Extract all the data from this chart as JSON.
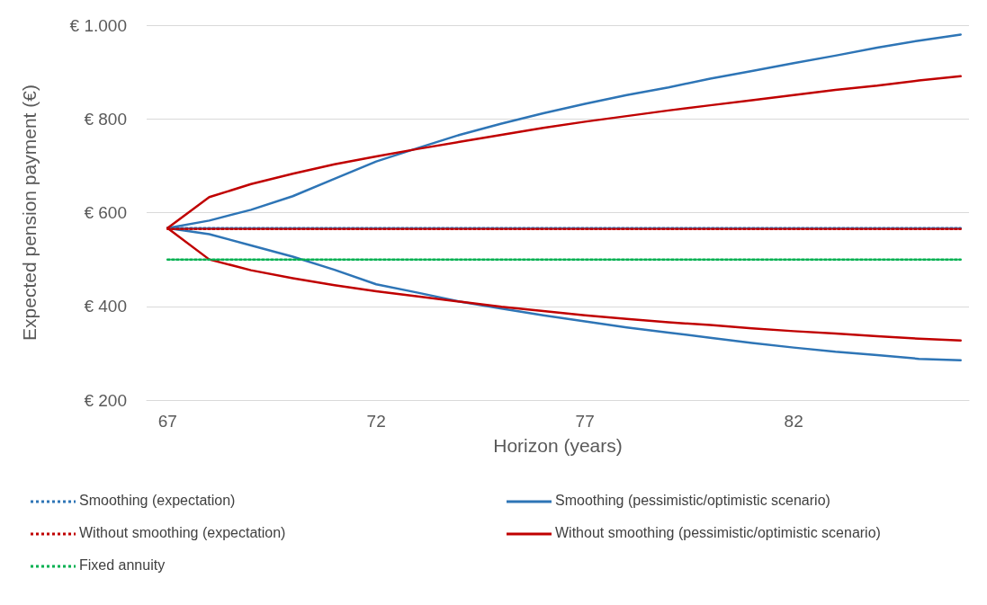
{
  "chart_data": {
    "type": "line",
    "xlabel": "Horizon (years)",
    "ylabel": "Expected pension payment (€)",
    "x": [
      67,
      68,
      69,
      70,
      71,
      72,
      73,
      74,
      75,
      76,
      77,
      78,
      79,
      80,
      81,
      82,
      83,
      84,
      85,
      86
    ],
    "xlim": [
      66.5,
      86.2
    ],
    "xticks": [
      67,
      72,
      77,
      82
    ],
    "ylim": [
      200,
      1000
    ],
    "yticks": [
      {
        "value": 200,
        "label": "€ 200"
      },
      {
        "value": 400,
        "label": "€ 400"
      },
      {
        "value": 600,
        "label": "€ 600"
      },
      {
        "value": 800,
        "label": "€ 800"
      },
      {
        "value": 1000,
        "label": "€ 1.000"
      }
    ],
    "grid": "y",
    "legend": "bottom",
    "marker": "none",
    "series": [
      {
        "name": "Smoothing (expectation)",
        "color": "#2e75b6",
        "line_style": "dotted",
        "values": [
          567,
          567,
          567,
          567,
          567,
          567,
          567,
          567,
          567,
          567,
          567,
          567,
          567,
          567,
          567,
          567,
          567,
          567,
          567,
          567
        ]
      },
      {
        "name": "Smoothing (pessimistic/optimistic scenario)",
        "color": "#2e75b6",
        "line_style": "solid",
        "values": [
          567,
          583,
          606,
          635,
          672,
          709,
          738,
          766,
          790,
          812,
          832,
          851,
          867,
          886,
          902,
          919,
          935,
          952,
          967,
          980
        ]
      },
      {
        "color": "#2e75b6",
        "line_style": "solid",
        "values": [
          567,
          554,
          530,
          506,
          478,
          447,
          429,
          410,
          395,
          381,
          368,
          355,
          344,
          333,
          322,
          312,
          303,
          296,
          288,
          285
        ]
      },
      {
        "name": "Without smoothing (expectation)",
        "color": "#c00000",
        "line_style": "dotted",
        "values": [
          565,
          565,
          565,
          565,
          565,
          565,
          565,
          565,
          565,
          565,
          565,
          565,
          565,
          565,
          565,
          565,
          565,
          565,
          565,
          565
        ]
      },
      {
        "name": "Without smoothing (pessimistic/optimistic scenario)",
        "color": "#c00000",
        "line_style": "solid",
        "values": [
          567,
          633,
          661,
          683,
          703,
          720,
          736,
          751,
          766,
          781,
          794,
          806,
          818,
          829,
          840,
          851,
          862,
          871,
          882,
          891
        ]
      },
      {
        "color": "#c00000",
        "line_style": "solid",
        "values": [
          567,
          500,
          477,
          460,
          445,
          432,
          421,
          410,
          399,
          390,
          381,
          373,
          366,
          360,
          353,
          347,
          342,
          336,
          331,
          327
        ]
      },
      {
        "name": "Fixed annuity",
        "color": "#00b050",
        "line_style": "dotted",
        "values": [
          500,
          500,
          500,
          500,
          500,
          500,
          500,
          500,
          500,
          500,
          500,
          500,
          500,
          500,
          500,
          500,
          500,
          500,
          500,
          500
        ]
      }
    ]
  }
}
